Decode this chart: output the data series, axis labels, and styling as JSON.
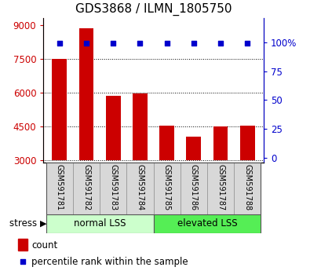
{
  "title": "GDS3868 / ILMN_1805750",
  "samples": [
    "GSM591781",
    "GSM591782",
    "GSM591783",
    "GSM591784",
    "GSM591785",
    "GSM591786",
    "GSM591787",
    "GSM591788"
  ],
  "counts": [
    7500,
    8850,
    5850,
    5980,
    4530,
    4050,
    4510,
    4530
  ],
  "percentile_ranks": [
    99,
    99,
    99,
    99,
    99,
    99,
    99,
    99
  ],
  "bar_color": "#cc0000",
  "dot_color": "#0000cc",
  "ylim_left": [
    2900,
    9300
  ],
  "yticks_left": [
    3000,
    4500,
    6000,
    7500,
    9000
  ],
  "ylim_right": [
    -4.17,
    120.83
  ],
  "yticks_right": [
    0,
    25,
    50,
    75,
    100
  ],
  "ytick_labels_right": [
    "0",
    "25",
    "50",
    "75",
    "100%"
  ],
  "group1_label": "normal LSS",
  "group2_label": "elevated LSS",
  "group1_indices": [
    0,
    1,
    2,
    3
  ],
  "group2_indices": [
    4,
    5,
    6,
    7
  ],
  "group1_color": "#ccffcc",
  "group2_color": "#55ee55",
  "label_bg_color": "#d8d8d8",
  "stress_label": "stress",
  "legend_count_label": "count",
  "legend_pct_label": "percentile rank within the sample",
  "baseline": 3000,
  "title_fontsize": 11,
  "tick_fontsize": 8.5,
  "sample_fontsize": 7
}
